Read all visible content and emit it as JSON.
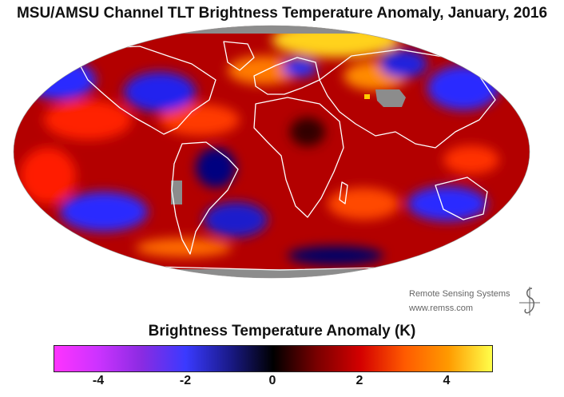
{
  "title": "MSU/AMSU Channel TLT Brightness Temperature Anomaly, January, 2016",
  "credit": {
    "org": "Remote Sensing Systems",
    "url": "www.remss.com"
  },
  "legend": {
    "title": "Brightness Temperature Anomaly (K)",
    "ticks": [
      "-4",
      "-2",
      "0",
      "2",
      "4"
    ],
    "range": [
      -5,
      5
    ]
  },
  "colors": {
    "ocean_bg": "#b00000",
    "missing": "#8c8c8c",
    "coast": "#ffffff"
  }
}
